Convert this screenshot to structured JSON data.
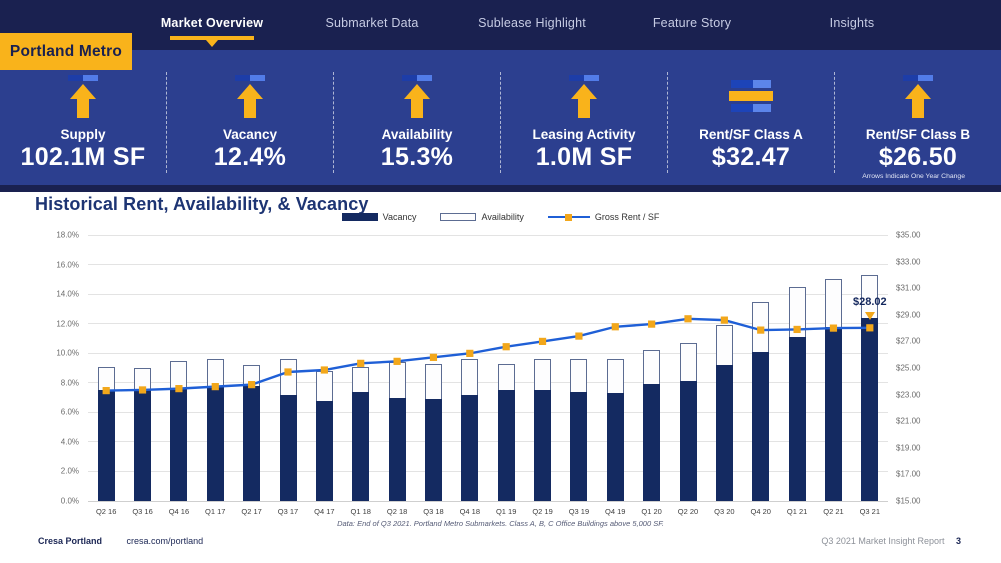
{
  "nav": {
    "region_tab": "Portland Metro",
    "items": [
      {
        "label": "Market Overview",
        "active": true
      },
      {
        "label": "Submarket Data",
        "active": false
      },
      {
        "label": "Sublease Highlight",
        "active": false
      },
      {
        "label": "Feature Story",
        "active": false
      },
      {
        "label": "Insights",
        "active": false
      }
    ]
  },
  "stats": {
    "note": "Arrows Indicate One Year Change",
    "items": [
      {
        "label": "Supply",
        "value": "102.1M SF",
        "trend": "up"
      },
      {
        "label": "Vacancy",
        "value": "12.4%",
        "trend": "up"
      },
      {
        "label": "Availability",
        "value": "15.3%",
        "trend": "up"
      },
      {
        "label": "Leasing Activity",
        "value": "1.0M SF",
        "trend": "up"
      },
      {
        "label": "Rent/SF Class A",
        "value": "$32.47",
        "trend": "flat"
      },
      {
        "label": "Rent/SF Class B",
        "value": "$26.50",
        "trend": "up"
      }
    ]
  },
  "chart_data": {
    "type": "bar+line",
    "title": "Historical Rent, Availability, & Vacancy",
    "footnote": "Data: End of Q3 2021. Portland Metro Submarkets. Class A, B, C Office Buildings above 5,000 SF.",
    "categories": [
      "Q2 16",
      "Q3 16",
      "Q4 16",
      "Q1 17",
      "Q2 17",
      "Q3 17",
      "Q4 17",
      "Q1 18",
      "Q2 18",
      "Q3 18",
      "Q4 18",
      "Q1 19",
      "Q2 19",
      "Q3 19",
      "Q4 19",
      "Q1 20",
      "Q2 20",
      "Q3 20",
      "Q4 20",
      "Q1 21",
      "Q2 21",
      "Q3 21"
    ],
    "series": [
      {
        "name": "Vacancy",
        "type": "bar",
        "axis": "left",
        "values": [
          7.5,
          7.5,
          7.6,
          7.7,
          7.8,
          7.2,
          6.8,
          7.4,
          7.0,
          6.9,
          7.2,
          7.5,
          7.5,
          7.4,
          7.3,
          7.9,
          8.1,
          9.2,
          10.1,
          11.1,
          11.8,
          12.4
        ]
      },
      {
        "name": "Availability",
        "type": "bar",
        "axis": "left",
        "values": [
          9.1,
          9.0,
          9.5,
          9.6,
          9.2,
          9.6,
          8.8,
          9.1,
          9.4,
          9.3,
          9.6,
          9.3,
          9.6,
          9.6,
          9.6,
          10.2,
          10.7,
          11.9,
          13.5,
          14.5,
          15.0,
          15.3
        ]
      },
      {
        "name": "Gross Rent / SF",
        "type": "line",
        "axis": "right",
        "values": [
          23.3,
          23.35,
          23.45,
          23.6,
          23.75,
          24.7,
          24.85,
          25.35,
          25.5,
          25.8,
          26.1,
          26.6,
          27.0,
          27.4,
          28.1,
          28.3,
          28.7,
          28.6,
          27.85,
          27.9,
          28.0,
          28.02
        ]
      }
    ],
    "left_axis": {
      "min": 0,
      "max": 18,
      "step": 2,
      "format": "percent"
    },
    "right_axis": {
      "min": 15,
      "max": 35,
      "step": 2,
      "format": "dollar"
    },
    "annotation": {
      "label": "$28.02",
      "category": "Q3 21"
    },
    "legend_position": "top",
    "grid": true
  },
  "footer": {
    "left_primary": "Cresa Portland",
    "left_secondary": "cresa.com/portland",
    "right_text": "Q3 2021 Market Insight Report",
    "page_number": "3"
  },
  "colors": {
    "brand_navy": "#1A2150",
    "band_blue": "#2C3F8F",
    "brand_yellow": "#F9B31B",
    "bar_navy": "#142A61",
    "availability_border": "#5C6C92",
    "line_blue": "#1F5FD6",
    "marker_yellow": "#F2A71B"
  }
}
